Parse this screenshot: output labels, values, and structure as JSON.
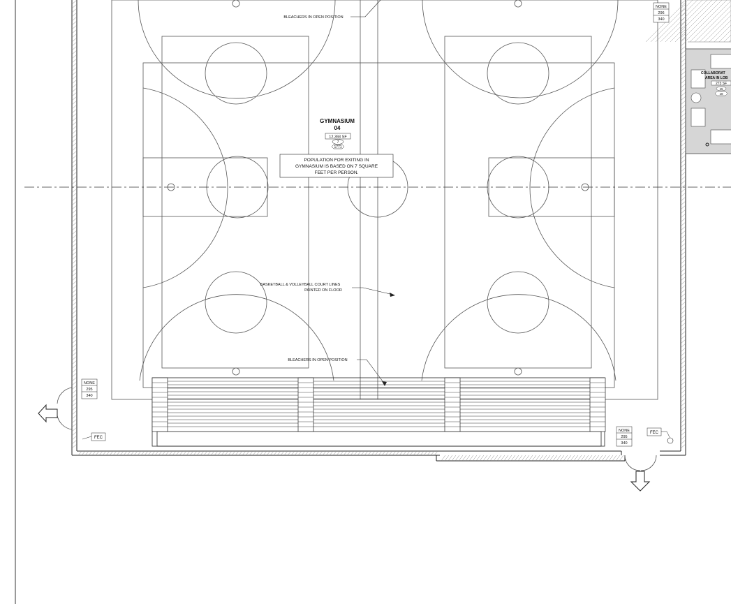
{
  "room": {
    "name": "GYMNASIUM",
    "number": "04",
    "area": "12,393 SF",
    "factor": "7",
    "occupants": "1771"
  },
  "notes": {
    "population": [
      "POPULATION FOR EXITING IN",
      "GYMNASIUM IS BASED ON 7 SQUARE",
      "FEET PER PERSON."
    ],
    "bleachers_top": "BLEACHERS IN OPEN POSITION",
    "bleachers_bottom": "BLEACHERS IN OPEN POSITION",
    "court_lines": [
      "BASKETBALL & VOLLEYBALL COURT LINES",
      "PAINTED ON FLOOR"
    ]
  },
  "collab": {
    "lines": [
      "COLLABORAT",
      "AREA IN LOB"
    ],
    "area": "273 SF",
    "factor": "15",
    "occupants": "18"
  },
  "door_tags": {
    "top_right": [
      "NONE",
      "296",
      "340"
    ],
    "left": [
      "NONE",
      "295",
      "340"
    ],
    "bottom": [
      "NONE",
      "295",
      "340"
    ]
  },
  "fec": {
    "left": "FEC",
    "right": "FEC"
  },
  "colors": {
    "line": "#555555",
    "wall": "#222222",
    "collab_fill": "#d6d6d6"
  }
}
